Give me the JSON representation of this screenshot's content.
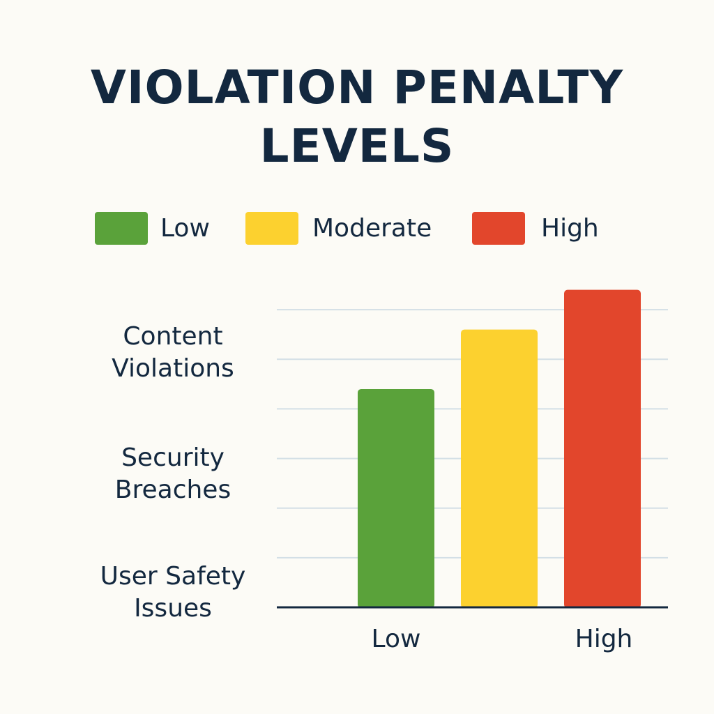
{
  "chart_data": {
    "type": "bar",
    "title": "VIOLATION PENALTY LEVELS",
    "title_lines": [
      "VIOLATION PENALTY",
      "LEVELS"
    ],
    "legend": [
      {
        "name": "Low",
        "color": "#5aa23a"
      },
      {
        "name": "Moderate",
        "color": "#fcd12f"
      },
      {
        "name": "High",
        "color": "#e2462c"
      }
    ],
    "y_categories": [
      {
        "line1": "Content",
        "line2": "Violations"
      },
      {
        "line1": "Security",
        "line2": "Breaches"
      },
      {
        "line1": "User Safety",
        "line2": "Issues"
      }
    ],
    "x_tick_labels": {
      "left": "Low",
      "right": "High"
    },
    "series": [
      {
        "name": "Low",
        "value": 4.4,
        "color": "#5aa23a"
      },
      {
        "name": "Moderate",
        "value": 5.6,
        "color": "#fcd12f"
      },
      {
        "name": "High",
        "value": 6.4,
        "color": "#e2462c"
      }
    ],
    "ylim": [
      0,
      7
    ],
    "gridlines": [
      1,
      2,
      3,
      4,
      5,
      6
    ],
    "grid": true,
    "legend_position": "top",
    "axis_color": "#13283f",
    "grid_color": "#d3dfe6"
  }
}
